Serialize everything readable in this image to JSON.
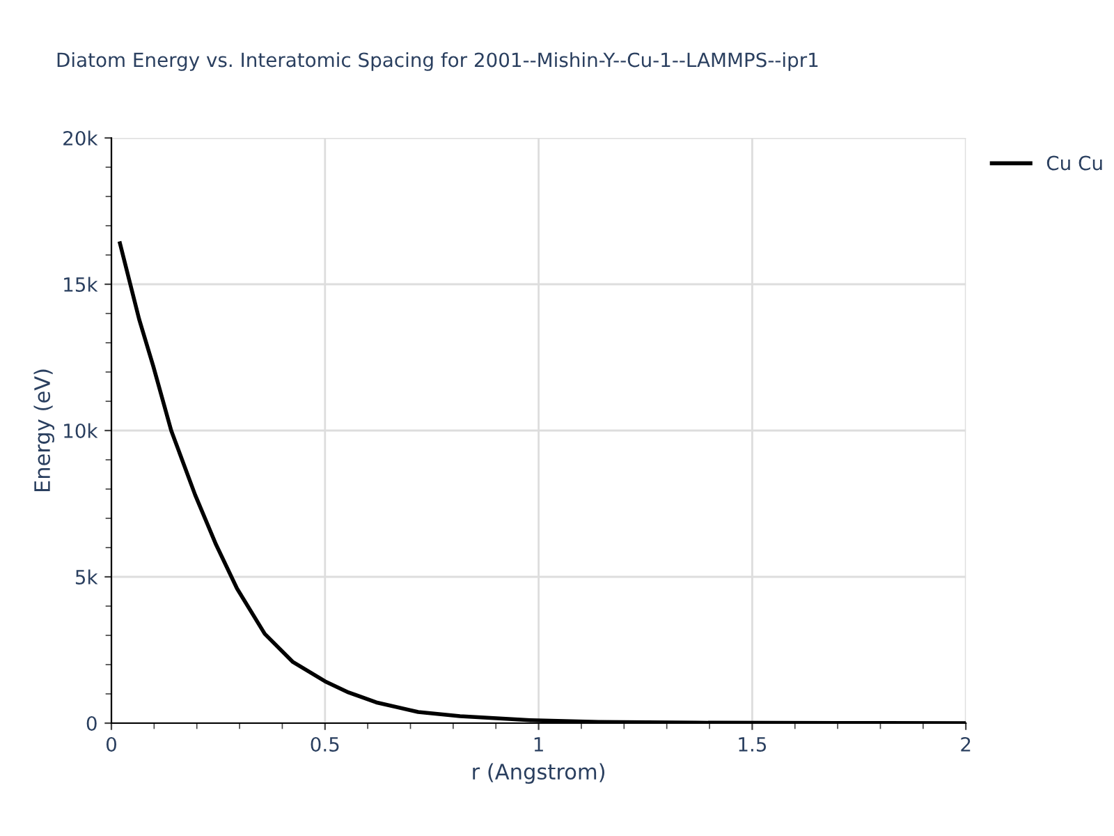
{
  "chart_data": {
    "type": "line",
    "title": "Diatom Energy vs. Interatomic Spacing for 2001--Mishin-Y--Cu-1--LAMMPS--ipr1",
    "xlabel": "r (Angstrom)",
    "ylabel": "Energy (eV)",
    "series": [
      {
        "name": "Cu Cu",
        "color": "#000000",
        "x": [
          0.02,
          0.065,
          0.098,
          0.14,
          0.196,
          0.245,
          0.294,
          0.359,
          0.424,
          0.5,
          0.555,
          0.62,
          0.718,
          0.816,
          0.98,
          1.14,
          1.37,
          1.7,
          2.0
        ],
        "values": [
          16400,
          13800,
          12200,
          10000,
          7800,
          6100,
          4600,
          3050,
          2100,
          1430,
          1050,
          710,
          380,
          240,
          100,
          40,
          15,
          5,
          0
        ]
      }
    ],
    "xlim": [
      0,
      2
    ],
    "xticks": [
      0,
      0.5,
      1,
      1.5,
      2
    ],
    "ylim": [
      0,
      20000
    ],
    "yticks": [
      {
        "value": 0,
        "label": "0"
      },
      {
        "value": 5000,
        "label": "5k"
      },
      {
        "value": 10000,
        "label": "10k"
      },
      {
        "value": 15000,
        "label": "15k"
      },
      {
        "value": 20000,
        "label": "20k"
      }
    ],
    "grid": true,
    "legend": "top right",
    "marker": "none",
    "line_style": "solid"
  }
}
